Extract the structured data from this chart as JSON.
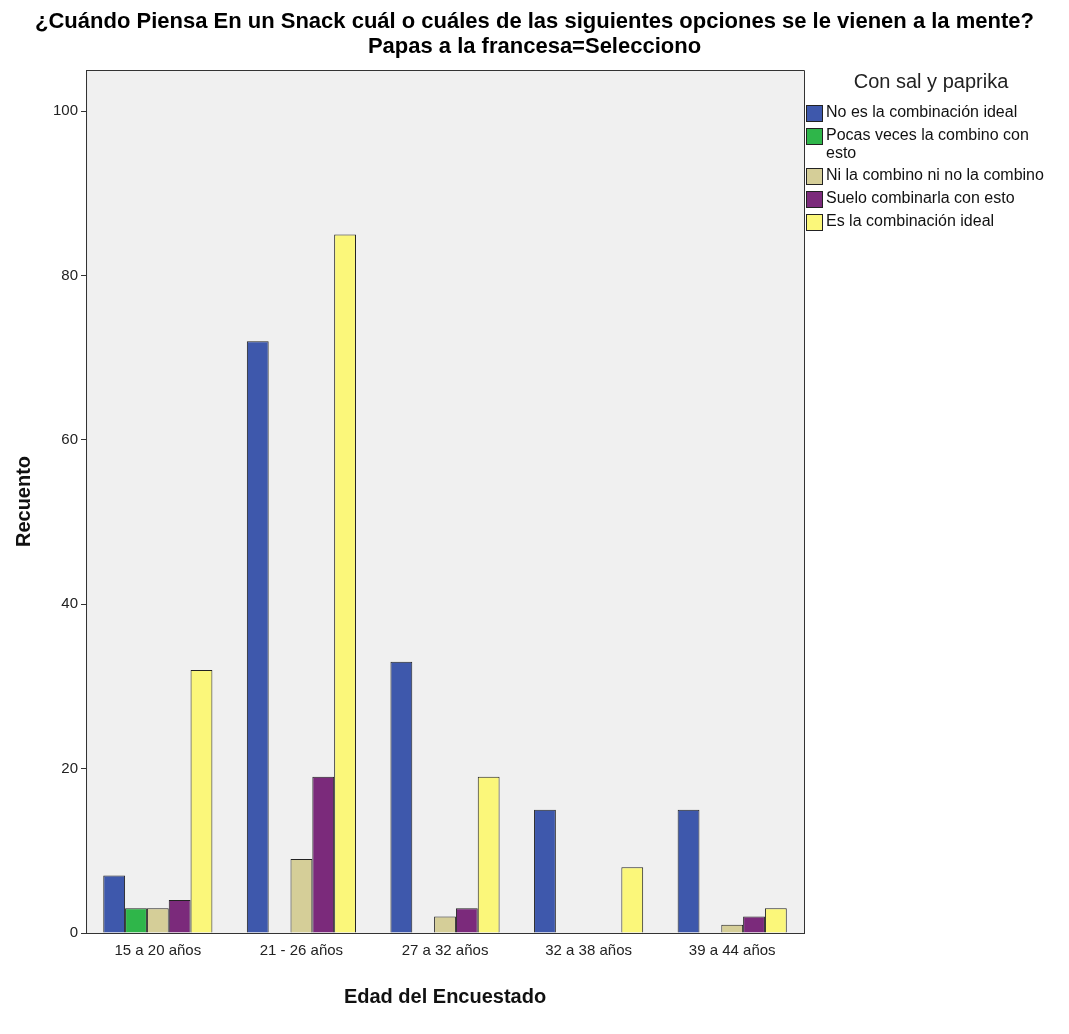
{
  "chart_data": {
    "type": "bar",
    "title": "¿Cuándo Piensa En un Snack cuál o cuáles de las siguientes opciones se le vienen a la mente? Papas a la francesa=Selecciono",
    "xlabel": "Edad del Encuestado",
    "ylabel": "Recuento",
    "legend_title": "Con sal y paprika",
    "categories": [
      "15 a 20 años",
      "21 - 26 años",
      "27 a 32 años",
      "32 a 38 años",
      "39 a 44 años"
    ],
    "series": [
      {
        "name": "No es la combinación ideal",
        "color": "#3e58ac",
        "values": [
          7,
          72,
          33,
          15,
          15
        ]
      },
      {
        "name": "Pocas veces la combino con esto",
        "color": "#2fb64a",
        "values": [
          3,
          null,
          null,
          null,
          null
        ]
      },
      {
        "name": "Ni la combino ni no la combino",
        "color": "#d5ce98",
        "values": [
          3,
          9,
          2,
          null,
          1
        ]
      },
      {
        "name": "Suelo combinarla con esto",
        "color": "#7b2a7b",
        "values": [
          4,
          19,
          3,
          null,
          2
        ]
      },
      {
        "name": "Es la combinación ideal",
        "color": "#fbf77a",
        "values": [
          32,
          85,
          19,
          8,
          3
        ]
      }
    ],
    "ylim": [
      0,
      105
    ],
    "yticks": [
      0,
      20,
      40,
      60,
      80,
      100
    ],
    "grid": false,
    "legend": "right"
  }
}
